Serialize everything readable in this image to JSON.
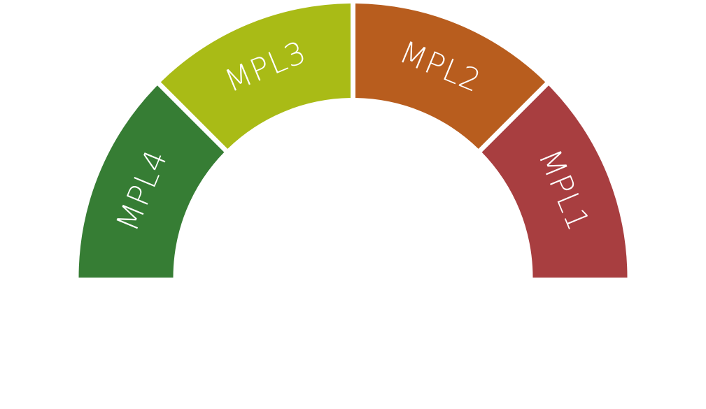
{
  "gauge": {
    "segments": [
      {
        "label": "MPL4",
        "color": "#367D34"
      },
      {
        "label": "MPL3",
        "color": "#A9BB16"
      },
      {
        "label": "MPL2",
        "color": "#B85D1E"
      },
      {
        "label": "MPL1",
        "color": "#A83E40"
      }
    ]
  }
}
